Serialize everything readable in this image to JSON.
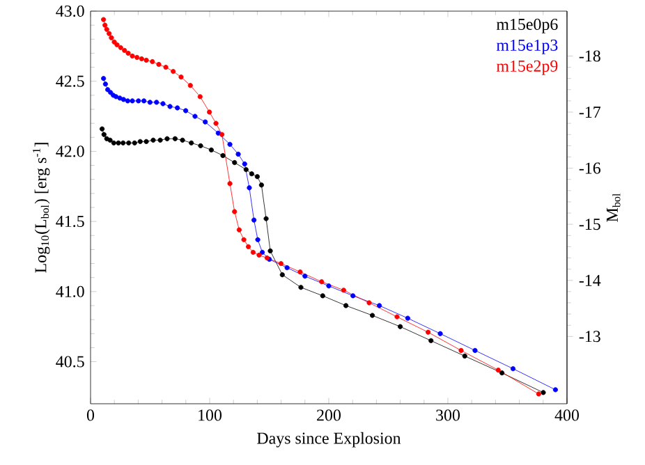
{
  "chart_data": {
    "type": "line",
    "xlabel": "Days since Explosion",
    "ylabel": "Log$_{10}$(L$_{bol}$) [erg s$^{-1}$]",
    "y2label": "M$_{bol}$",
    "xlim": [
      0,
      400
    ],
    "xticks": [
      0,
      100,
      200,
      300,
      400
    ],
    "ylim": [
      40.2,
      43.0
    ],
    "yticks": [
      {
        "value": 40.5,
        "label": "40.5"
      },
      {
        "value": 41.0,
        "label": "41.0"
      },
      {
        "value": 41.5,
        "label": "41.5"
      },
      {
        "value": 42.0,
        "label": "42.0"
      },
      {
        "value": 42.5,
        "label": "42.5"
      },
      {
        "value": 43.0,
        "label": "43.0"
      }
    ],
    "y2lim": [
      -11.8,
      -18.8
    ],
    "y2ticks": [
      -13,
      -14,
      -15,
      -16,
      -17,
      -18
    ],
    "marker": "circle",
    "legend": "top right",
    "series": [
      {
        "name": "m15e0p6",
        "color": "#000000",
        "x": [
          9.7,
          11.3,
          13.6,
          16.4,
          19.5,
          23.4,
          27.3,
          32,
          37,
          41.7,
          46.8,
          52.6,
          58.5,
          64.3,
          71,
          77.2,
          84.6,
          92.4,
          101.4,
          111.1,
          120.9,
          130.6,
          135.3,
          140,
          143.5,
          147.4,
          150.9,
          161,
          176.6,
          194.9,
          214.4,
          236.6,
          260,
          285.8,
          314.2,
          345.4,
          380.1
        ],
        "values": [
          42.16,
          42.12,
          42.09,
          42.08,
          42.06,
          42.06,
          42.06,
          42.06,
          42.06,
          42.07,
          42.07,
          42.08,
          42.08,
          42.09,
          42.09,
          42.08,
          42.06,
          42.04,
          42.01,
          41.97,
          41.92,
          41.87,
          41.84,
          41.82,
          41.76,
          41.52,
          41.29,
          41.12,
          41.03,
          40.97,
          40.9,
          40.83,
          40.75,
          40.65,
          40.54,
          40.42,
          40.28
        ]
      },
      {
        "name": "m15e1p3",
        "color": "#0000ff",
        "x": [
          10.9,
          12.5,
          14.4,
          16.8,
          19.1,
          21.4,
          24.6,
          27.7,
          31.2,
          35.1,
          40.2,
          44.8,
          49.9,
          55.4,
          60.8,
          66.7,
          72.9,
          79.9,
          87.7,
          96.3,
          107.2,
          117,
          124,
          129.4,
          133.3,
          137.2,
          140.4,
          144.2,
          150.1,
          165,
          180,
          200,
          220.3,
          242.5,
          266.3,
          293.6,
          322.8,
          354.7,
          390.3
        ],
        "values": [
          42.52,
          42.48,
          42.44,
          42.42,
          42.4,
          42.39,
          42.38,
          42.37,
          42.36,
          42.36,
          42.36,
          42.36,
          42.35,
          42.35,
          42.34,
          42.32,
          42.31,
          42.29,
          42.25,
          42.21,
          42.13,
          42.05,
          41.98,
          41.91,
          41.74,
          41.51,
          41.37,
          41.28,
          41.23,
          41.17,
          41.11,
          41.04,
          40.97,
          40.9,
          40.81,
          40.7,
          40.58,
          40.45,
          40.3
        ]
      },
      {
        "name": "m15e2p9",
        "color": "#ff0000",
        "x": [
          10.9,
          12.1,
          13.6,
          15.6,
          17.5,
          19.9,
          22.2,
          25.3,
          28.5,
          31.6,
          35.1,
          39,
          42.9,
          46.8,
          51.9,
          57.3,
          63.2,
          69.4,
          76,
          83.8,
          92,
          99.8,
          105.3,
          110.3,
          117,
          120.9,
          124.8,
          128.7,
          132.5,
          136.5,
          141.5,
          148.2,
          159.9,
          176,
          194,
          212.5,
          233.9,
          257.3,
          283.4,
          311.1,
          342.3,
          376.2
        ],
        "values": [
          42.94,
          42.9,
          42.87,
          42.84,
          42.81,
          42.78,
          42.76,
          42.74,
          42.72,
          42.7,
          42.68,
          42.67,
          42.66,
          42.65,
          42.64,
          42.62,
          42.6,
          42.57,
          42.53,
          42.47,
          42.39,
          42.28,
          42.2,
          42.12,
          41.77,
          41.57,
          41.44,
          41.37,
          41.32,
          41.28,
          41.26,
          41.24,
          41.2,
          41.14,
          41.07,
          41.01,
          40.92,
          40.82,
          40.71,
          40.58,
          40.44,
          40.27
        ]
      }
    ]
  }
}
